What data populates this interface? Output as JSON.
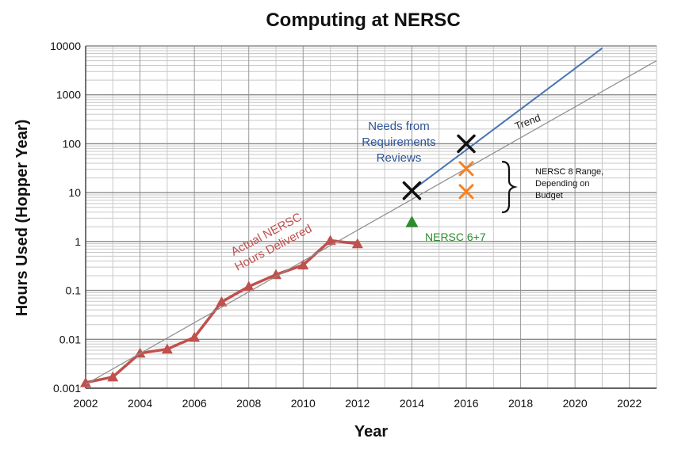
{
  "chart_data": {
    "type": "line",
    "title": "Computing at NERSC",
    "xlabel": "Year",
    "ylabel": "Hours Used (Hopper Year)",
    "xlim": [
      2002,
      2023
    ],
    "ylim": [
      0.001,
      10000
    ],
    "yscale": "log",
    "grid": true,
    "x_ticks": [
      "2002",
      "2004",
      "2006",
      "2008",
      "2010",
      "2012",
      "2014",
      "2016",
      "2018",
      "2020",
      "2022"
    ],
    "y_ticks": [
      "0.001",
      "0.01",
      "0.1",
      "1",
      "10",
      "100",
      "1000",
      "10000"
    ],
    "series": [
      {
        "name": "Actual NERSC Hours Delivered",
        "color": "#c0504d",
        "marker": "triangle",
        "x": [
          2002,
          2003,
          2004,
          2005,
          2006,
          2007,
          2008,
          2009,
          2010,
          2011,
          2012
        ],
        "y": [
          0.0013,
          0.0017,
          0.0052,
          0.0063,
          0.011,
          0.058,
          0.12,
          0.21,
          0.33,
          1.05,
          0.9
        ]
      },
      {
        "name": "Trend",
        "color": "#8c8c8c",
        "x": [
          2002,
          2023
        ],
        "y": [
          0.0012,
          5000
        ]
      },
      {
        "name": "Needs from Requirements Reviews",
        "color": "#4a74b0",
        "x": [
          2014,
          2021
        ],
        "y": [
          11,
          9000
        ]
      }
    ],
    "markers": [
      {
        "label": "",
        "shape": "x",
        "color": "#111111",
        "x": 2014,
        "y": 11
      },
      {
        "label": "",
        "shape": "x",
        "color": "#111111",
        "x": 2016,
        "y": 100
      },
      {
        "label": "",
        "shape": "x",
        "color": "#f58220",
        "x": 2016,
        "y": 31
      },
      {
        "label": "",
        "shape": "x",
        "color": "#f58220",
        "x": 2016,
        "y": 10.5
      },
      {
        "label": "NERSC 6+7",
        "shape": "triangle",
        "color": "#2e8b2e",
        "x": 2014,
        "y": 2.5
      }
    ],
    "annotations": [
      {
        "text": [
          "Actual NERSC",
          "Hours Delivered"
        ],
        "color": "#c0504d"
      },
      {
        "text": [
          "Needs from",
          "Requirements",
          "Reviews"
        ],
        "color": "#2f5597"
      },
      {
        "text": [
          "Trend"
        ],
        "color": "#222222"
      },
      {
        "text": [
          "NERSC 8 Range,",
          "Depending on",
          "Budget"
        ],
        "color": "#111111"
      },
      {
        "text": [
          "NERSC 6+7"
        ],
        "color": "#2e8b2e"
      }
    ]
  }
}
